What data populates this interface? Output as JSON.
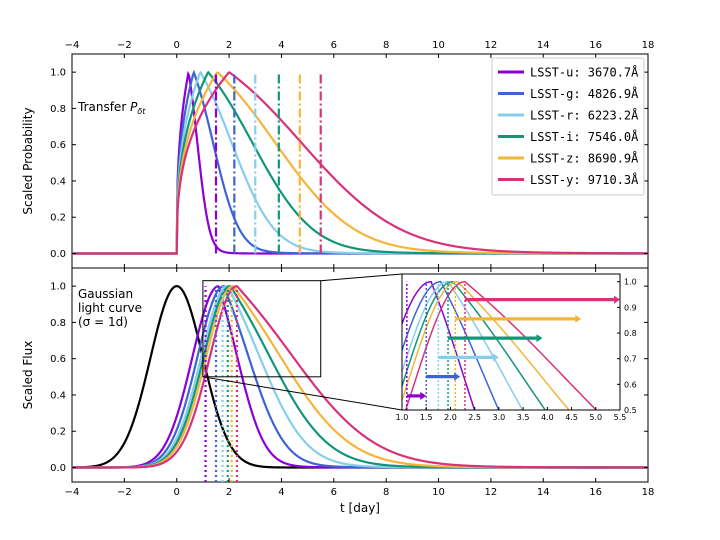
{
  "chart_data": {
    "type": "line",
    "xlabel": "t [day]",
    "xlim": [
      -4,
      18
    ],
    "x_ticks": [
      "−4",
      "−2",
      "0",
      "2",
      "4",
      "6",
      "8",
      "10",
      "12",
      "14",
      "16",
      "18"
    ],
    "x_tick_values": [
      -4,
      -2,
      0,
      2,
      4,
      6,
      8,
      10,
      12,
      14,
      16,
      18
    ],
    "panels": [
      {
        "name": "transfer",
        "annotation": "Transfer P_δt",
        "annotation_main": "Transfer ",
        "annotation_math": "P",
        "annotation_sub": "δt",
        "ylabel": "Scaled Probability",
        "ylim": [
          -0.08,
          1.1
        ],
        "y_ticks": [
          "0.0",
          "0.2",
          "0.4",
          "0.6",
          "0.8",
          "1.0"
        ],
        "y_tick_values": [
          0.0,
          0.2,
          0.4,
          0.6,
          0.8,
          1.0
        ]
      },
      {
        "name": "gaussian",
        "annotation_lines": [
          "Gaussian",
          "light curve",
          "(σ = 1d)"
        ],
        "ylabel": "Scaled Flux",
        "ylim": [
          -0.08,
          1.1
        ],
        "y_ticks": [
          "0.0",
          "0.2",
          "0.4",
          "0.6",
          "0.8",
          "1.0"
        ],
        "y_tick_values": [
          0.0,
          0.2,
          0.4,
          0.6,
          0.8,
          1.0
        ],
        "gaussian": {
          "label": "Gaussian light curve",
          "mu": 0,
          "sigma": 1,
          "color": "#000000"
        }
      }
    ],
    "series": [
      {
        "name": "LSST-u",
        "label": "LSST-u: 3670.7Å",
        "color": "#8b00d6",
        "transfer_peak": 0.45,
        "transfer_width": 0.55,
        "transfer_mean": 1.5,
        "flux_mean": 1.1,
        "flux_peak": 1.6
      },
      {
        "name": "LSST-g",
        "label": "LSST-g: 4826.9Å",
        "color": "#3d63d6",
        "transfer_peak": 0.65,
        "transfer_width": 1.2,
        "transfer_mean": 2.2,
        "flux_mean": 1.5,
        "flux_peak": 1.8
      },
      {
        "name": "LSST-r",
        "label": "LSST-r: 6223.2Å",
        "color": "#87ceeb",
        "transfer_peak": 0.9,
        "transfer_width": 1.95,
        "transfer_mean": 3.0,
        "flux_mean": 1.75,
        "flux_peak": 1.95
      },
      {
        "name": "LSST-i",
        "label": "LSST-i: 7546.0Å",
        "color": "#11967a",
        "transfer_peak": 1.2,
        "transfer_width": 2.75,
        "transfer_mean": 3.9,
        "flux_mean": 1.95,
        "flux_peak": 2.05
      },
      {
        "name": "LSST-z",
        "label": "LSST-z: 8690.9Å",
        "color": "#f5b43a",
        "transfer_peak": 1.55,
        "transfer_width": 3.6,
        "transfer_mean": 4.7,
        "flux_mean": 2.1,
        "flux_peak": 2.15
      },
      {
        "name": "LSST-y",
        "label": "LSST-y: 9710.3Å",
        "color": "#d8327a",
        "transfer_peak": 2.0,
        "transfer_width": 4.5,
        "transfer_mean": 5.5,
        "flux_mean": 2.3,
        "flux_peak": 2.3
      }
    ],
    "inset": {
      "xlim": [
        1.0,
        5.5
      ],
      "ylim": [
        0.5,
        1.03
      ],
      "x_ticks": [
        "1.0",
        "1.5",
        "2.0",
        "2.5",
        "3.0",
        "3.5",
        "4.0",
        "4.5",
        "5.0",
        "5.5"
      ],
      "x_tick_values": [
        1.0,
        1.5,
        2.0,
        2.5,
        3.0,
        3.5,
        4.0,
        4.5,
        5.0,
        5.5
      ],
      "y_ticks": [
        "0.5",
        "0.6",
        "0.7",
        "0.8",
        "0.9",
        "1.0"
      ],
      "y_tick_values": [
        0.5,
        0.6,
        0.7,
        0.8,
        0.9,
        1.0
      ],
      "arrows": [
        {
          "series": "LSST-u",
          "y": 0.555,
          "x_start": 1.1,
          "x_end": 1.5
        },
        {
          "series": "LSST-g",
          "y": 0.63,
          "x_start": 1.5,
          "x_end": 2.2
        },
        {
          "series": "LSST-r",
          "y": 0.705,
          "x_start": 1.75,
          "x_end": 3.0
        },
        {
          "series": "LSST-i",
          "y": 0.78,
          "x_start": 1.95,
          "x_end": 3.9
        },
        {
          "series": "LSST-z",
          "y": 0.855,
          "x_start": 2.1,
          "x_end": 4.7
        },
        {
          "series": "LSST-y",
          "y": 0.93,
          "x_start": 2.3,
          "x_end": 5.5
        }
      ]
    },
    "legend_position": "top-right"
  }
}
